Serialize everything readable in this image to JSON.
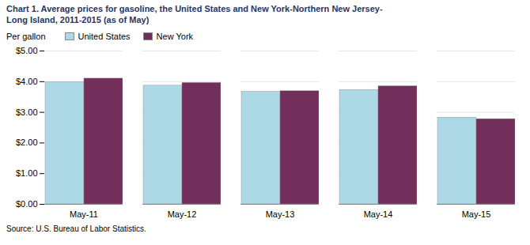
{
  "chart_data": {
    "type": "bar",
    "title": "Chart 1. Average prices for gasoline, the United States and New York-Northern New Jersey-\nLong Island, 2011-2015 (as of May)",
    "ylabel": "Per gallon",
    "source": "Source: U.S. Bureau of Labor Statistics.",
    "categories": [
      "May-11",
      "May-12",
      "May-13",
      "May-14",
      "May-15"
    ],
    "series": [
      {
        "name": "United States",
        "color": "#ADD8E6",
        "values": [
          3.99,
          3.87,
          3.67,
          3.73,
          2.83
        ]
      },
      {
        "name": "New York",
        "color": "#722F5B",
        "values": [
          4.1,
          3.96,
          3.69,
          3.85,
          2.78
        ]
      }
    ],
    "ylim": [
      0.0,
      5.0
    ],
    "yticks": [
      {
        "value": 0.0,
        "label": "$0.00"
      },
      {
        "value": 1.0,
        "label": "$1.00"
      },
      {
        "value": 2.0,
        "label": "$2.00"
      },
      {
        "value": 3.0,
        "label": "$3.00"
      },
      {
        "value": 4.0,
        "label": "$4.00"
      },
      {
        "value": 5.0,
        "label": "$5.00"
      }
    ],
    "grid": true,
    "legend": "upper left"
  }
}
